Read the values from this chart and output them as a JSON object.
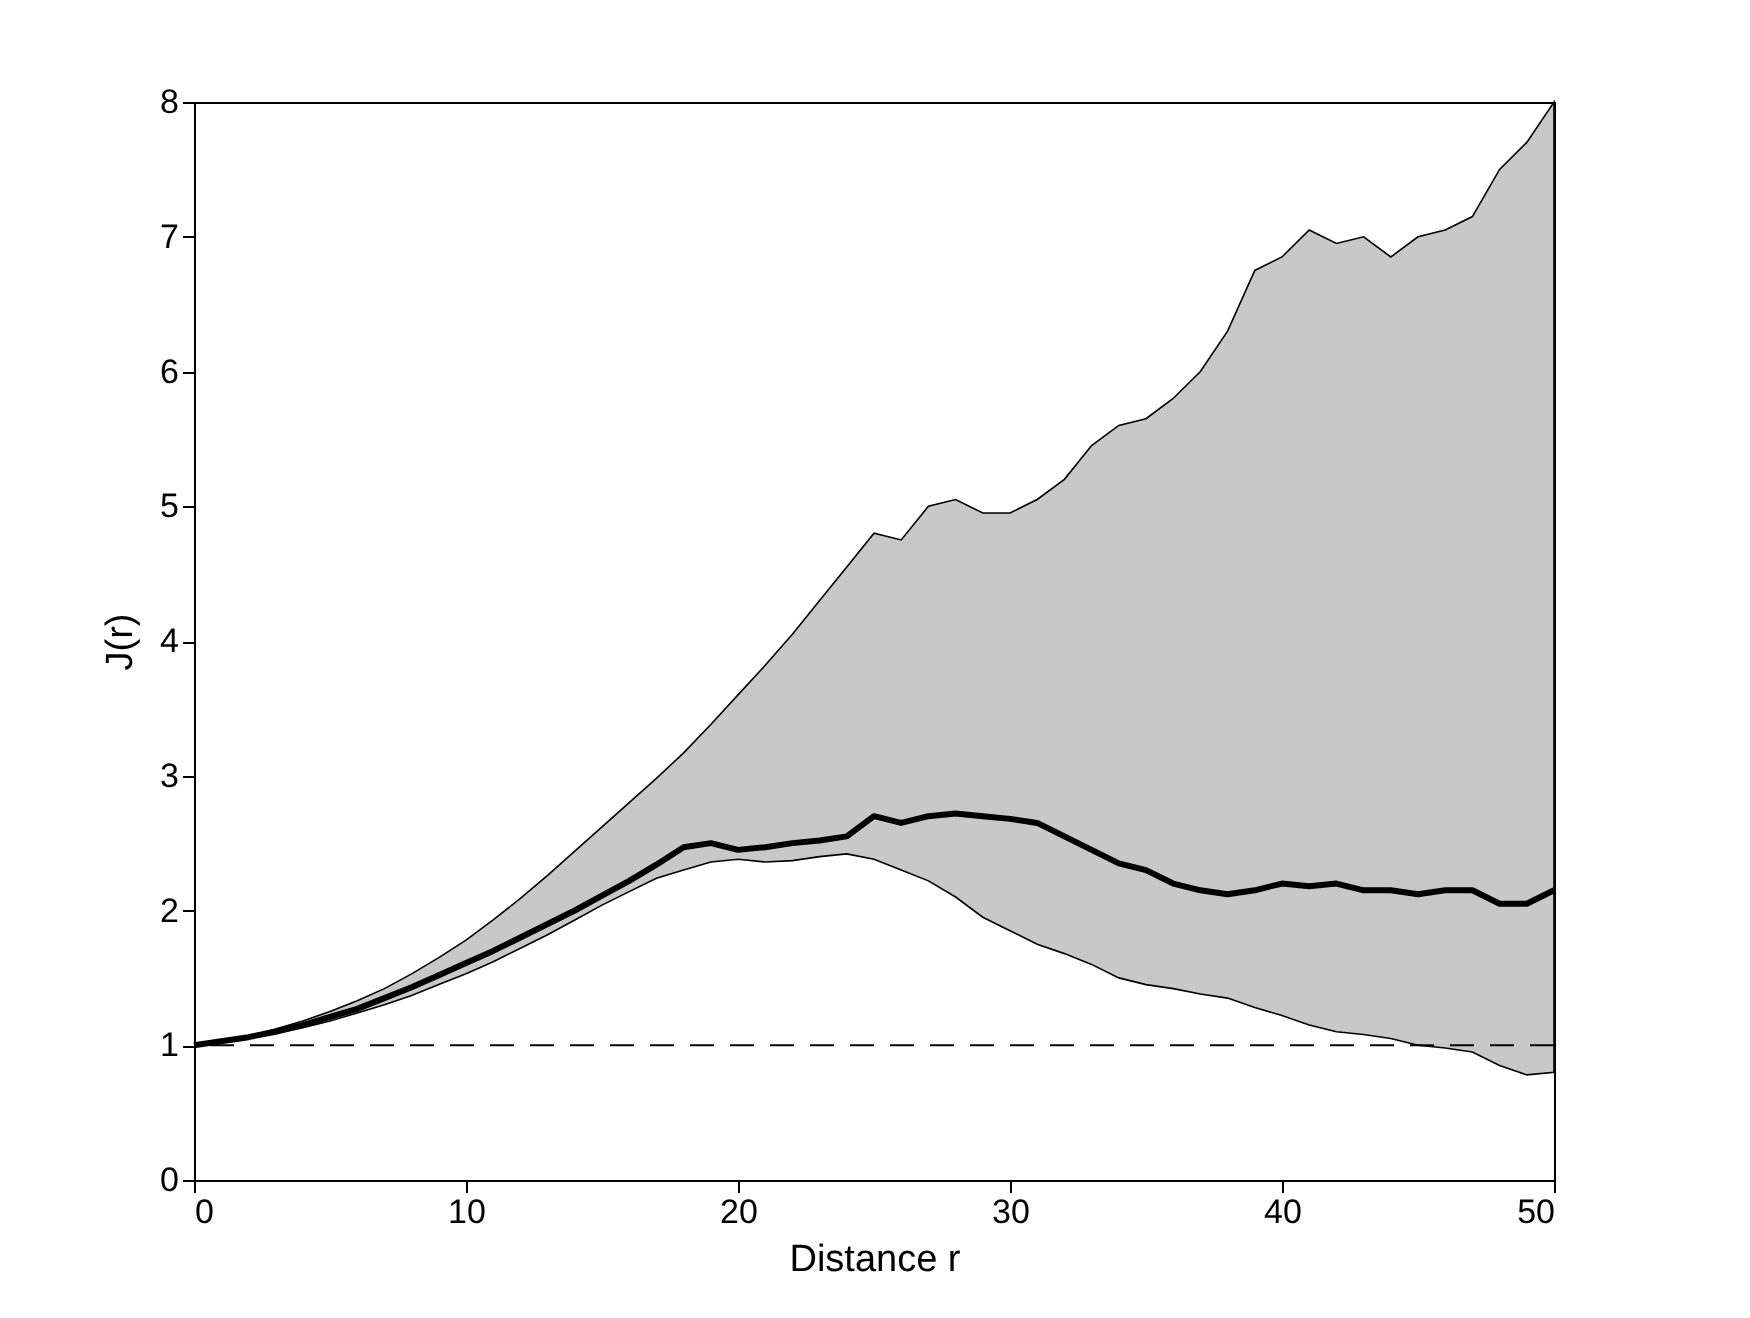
{
  "chart_data": {
    "type": "line",
    "xlabel": "Distance r",
    "ylabel": "J(r)",
    "xlim": [
      0,
      50
    ],
    "ylim": [
      0,
      8
    ],
    "xticks": [
      0,
      10,
      20,
      30,
      40,
      50
    ],
    "yticks": [
      0,
      1,
      2,
      3,
      4,
      5,
      6,
      7,
      8
    ],
    "grid": false,
    "marker": "none",
    "x": [
      0,
      1,
      2,
      3,
      4,
      5,
      6,
      7,
      8,
      9,
      10,
      11,
      12,
      13,
      14,
      15,
      16,
      17,
      18,
      19,
      20,
      21,
      22,
      23,
      24,
      25,
      26,
      27,
      28,
      29,
      30,
      31,
      32,
      33,
      34,
      35,
      36,
      37,
      38,
      39,
      40,
      41,
      42,
      43,
      44,
      45,
      46,
      47,
      48,
      49,
      50
    ],
    "series": [
      {
        "color": "#000000",
        "line_style": "solid",
        "values": [
          1.0,
          1.03,
          1.06,
          1.1,
          1.15,
          1.21,
          1.27,
          1.35,
          1.43,
          1.52,
          1.61,
          1.7,
          1.8,
          1.9,
          2.0,
          2.11,
          2.22,
          2.34,
          2.47,
          2.5,
          2.45,
          2.47,
          2.5,
          2.52,
          2.55,
          2.7,
          2.65,
          2.7,
          2.72,
          2.7,
          2.68,
          2.65,
          2.55,
          2.45,
          2.35,
          2.3,
          2.2,
          2.15,
          2.12,
          2.15,
          2.2,
          2.18,
          2.2,
          2.15,
          2.15,
          2.12,
          2.15,
          2.15,
          2.05,
          2.05,
          2.15
        ],
        "lower": [
          1.0,
          1.02,
          1.05,
          1.09,
          1.13,
          1.18,
          1.24,
          1.3,
          1.37,
          1.45,
          1.53,
          1.62,
          1.72,
          1.82,
          1.93,
          2.04,
          2.14,
          2.24,
          2.3,
          2.36,
          2.38,
          2.36,
          2.37,
          2.4,
          2.42,
          2.38,
          2.3,
          2.22,
          2.1,
          1.95,
          1.85,
          1.75,
          1.68,
          1.6,
          1.5,
          1.45,
          1.42,
          1.38,
          1.35,
          1.28,
          1.22,
          1.15,
          1.1,
          1.08,
          1.05,
          1.0,
          0.98,
          0.95,
          0.85,
          0.78,
          0.8
        ],
        "upper": [
          1.0,
          1.03,
          1.07,
          1.12,
          1.18,
          1.25,
          1.33,
          1.42,
          1.53,
          1.65,
          1.78,
          1.93,
          2.09,
          2.26,
          2.44,
          2.62,
          2.8,
          2.98,
          3.17,
          3.38,
          3.6,
          3.82,
          4.05,
          4.3,
          4.55,
          4.8,
          4.75,
          5.0,
          5.05,
          4.95,
          4.95,
          5.05,
          5.2,
          5.45,
          5.6,
          5.65,
          5.8,
          6.0,
          6.3,
          6.75,
          6.85,
          7.05,
          6.95,
          7.0,
          6.85,
          7.0,
          7.05,
          7.15,
          7.5,
          7.7,
          8.0
        ]
      }
    ],
    "ref_lines": [
      {
        "axis": "y",
        "value": 1,
        "color": "#000000",
        "line_style": "dashed"
      }
    ]
  }
}
